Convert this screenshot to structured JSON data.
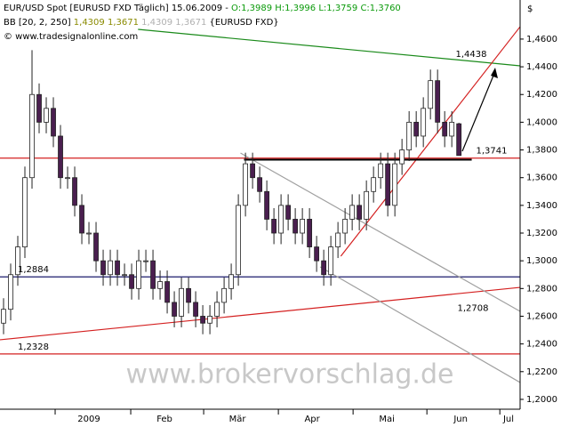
{
  "chart_data": {
    "type": "candlestick",
    "header": {
      "title": "EUR/USD Spot [EURUSD FXD  Täglich] 15.06.2009 - ",
      "ohlc": "O:1,3989 H:1,3996 L:1,3759 C:1,3760",
      "indicator": "BB [20, 2, 250]",
      "indicator_values": "1,4309 1,3671",
      "indicator_values_faint": "1,4309 1,3671",
      "indicator_symbol": "{EURUSD FXD}",
      "copyright": "© www.tradesignalonline.com",
      "watermark": "www.brokervorschlag.de",
      "currency": "$"
    },
    "open": [
      1.255,
      1.265,
      1.29,
      1.31,
      1.36,
      1.42,
      1.4,
      1.41,
      1.39,
      1.36,
      1.36,
      1.34,
      1.32,
      1.32,
      1.3,
      1.29,
      1.3,
      1.29,
      1.29,
      1.28,
      1.3,
      1.3,
      1.28,
      1.285,
      1.27,
      1.26,
      1.28,
      1.27,
      1.26,
      1.255,
      1.26,
      1.27,
      1.28,
      1.29,
      1.34,
      1.37,
      1.36,
      1.35,
      1.33,
      1.32,
      1.34,
      1.33,
      1.32,
      1.33,
      1.31,
      1.3,
      1.29,
      1.31,
      1.32,
      1.33,
      1.34,
      1.33,
      1.35,
      1.36,
      1.37,
      1.34,
      1.37,
      1.38,
      1.4,
      1.39,
      1.41,
      1.43,
      1.4,
      1.39,
      1.3989
    ],
    "high": [
      1.273,
      1.298,
      1.318,
      1.368,
      1.452,
      1.428,
      1.418,
      1.418,
      1.398,
      1.368,
      1.368,
      1.348,
      1.328,
      1.328,
      1.308,
      1.308,
      1.308,
      1.298,
      1.298,
      1.308,
      1.308,
      1.308,
      1.293,
      1.293,
      1.278,
      1.288,
      1.288,
      1.278,
      1.268,
      1.268,
      1.278,
      1.288,
      1.298,
      1.348,
      1.378,
      1.378,
      1.368,
      1.358,
      1.338,
      1.348,
      1.348,
      1.338,
      1.338,
      1.338,
      1.318,
      1.308,
      1.318,
      1.328,
      1.338,
      1.348,
      1.348,
      1.358,
      1.368,
      1.378,
      1.378,
      1.378,
      1.388,
      1.408,
      1.408,
      1.418,
      1.438,
      1.438,
      1.408,
      1.408,
      1.3996
    ],
    "low": [
      1.247,
      1.257,
      1.282,
      1.302,
      1.352,
      1.392,
      1.392,
      1.382,
      1.352,
      1.352,
      1.332,
      1.312,
      1.312,
      1.292,
      1.282,
      1.282,
      1.282,
      1.282,
      1.272,
      1.272,
      1.292,
      1.272,
      1.272,
      1.262,
      1.252,
      1.252,
      1.262,
      1.252,
      1.247,
      1.247,
      1.252,
      1.262,
      1.272,
      1.282,
      1.332,
      1.352,
      1.342,
      1.322,
      1.312,
      1.312,
      1.322,
      1.312,
      1.312,
      1.302,
      1.292,
      1.282,
      1.282,
      1.302,
      1.312,
      1.322,
      1.322,
      1.322,
      1.342,
      1.352,
      1.332,
      1.332,
      1.362,
      1.372,
      1.382,
      1.382,
      1.402,
      1.392,
      1.382,
      1.382,
      1.3759
    ],
    "close": [
      1.265,
      1.29,
      1.31,
      1.36,
      1.42,
      1.4,
      1.41,
      1.39,
      1.36,
      1.36,
      1.34,
      1.32,
      1.32,
      1.3,
      1.29,
      1.3,
      1.29,
      1.29,
      1.28,
      1.3,
      1.3,
      1.28,
      1.285,
      1.27,
      1.26,
      1.28,
      1.27,
      1.26,
      1.255,
      1.26,
      1.27,
      1.28,
      1.29,
      1.34,
      1.37,
      1.36,
      1.35,
      1.33,
      1.32,
      1.34,
      1.33,
      1.32,
      1.33,
      1.31,
      1.3,
      1.29,
      1.31,
      1.32,
      1.33,
      1.34,
      1.33,
      1.35,
      1.36,
      1.37,
      1.34,
      1.37,
      1.38,
      1.4,
      1.39,
      1.41,
      1.43,
      1.4,
      1.39,
      1.4,
      1.376
    ],
    "up_color": "#ffffff",
    "down_color": "#4a1f4f",
    "xlim": [
      -0.5,
      72.6
    ],
    "ylim": [
      1.1929,
      1.4882
    ],
    "xticks": [
      {
        "value": 7.25,
        "label": "2009"
      },
      {
        "value": 17.875,
        "label": "Feb"
      },
      {
        "value": 28.125,
        "label": "Mär"
      },
      {
        "value": 38.625,
        "label": "Apr"
      },
      {
        "value": 49.125,
        "label": "Mai"
      },
      {
        "value": 59.5,
        "label": "Jun"
      },
      {
        "value": 69.75,
        "label": "Jul"
      }
    ],
    "yticks": [
      {
        "value": 1.2,
        "label": "1,2000"
      },
      {
        "value": 1.22,
        "label": "1,2200"
      },
      {
        "value": 1.24,
        "label": "1,2400"
      },
      {
        "value": 1.26,
        "label": "1,2600"
      },
      {
        "value": 1.28,
        "label": "1,2800"
      },
      {
        "value": 1.3,
        "label": "1,3000"
      },
      {
        "value": 1.32,
        "label": "1,3200"
      },
      {
        "value": 1.34,
        "label": "1,3400"
      },
      {
        "value": 1.36,
        "label": "1,3600"
      },
      {
        "value": 1.38,
        "label": "1,3800"
      },
      {
        "value": 1.4,
        "label": "1,4000"
      },
      {
        "value": 1.42,
        "label": "1,4200"
      },
      {
        "value": 1.44,
        "label": "1,4400"
      },
      {
        "value": 1.46,
        "label": "1,4600"
      }
    ],
    "lines": [
      {
        "x": [
          18.9,
          72.6
        ],
        "y": [
          1.467,
          1.4407
        ],
        "color": "#1a8a1a",
        "level": {
          "value": 1.4438,
          "label": "1,4438"
        }
      },
      {
        "x": [
          -0.5,
          72.6
        ],
        "y": [
          1.3741,
          1.3741
        ],
        "color": "#d42020",
        "level": {
          "value": 1.3741,
          "label": "1,3741"
        }
      },
      {
        "x": [
          -0.5,
          72.6
        ],
        "y": [
          1.2884,
          1.2884
        ],
        "color": "#1c1c6e",
        "level": {
          "value": 1.2884,
          "label": "1,2884"
        }
      },
      {
        "x": [
          -0.5,
          72.6
        ],
        "y": [
          1.243,
          1.2808
        ],
        "color": "#d42020",
        "level": {
          "value": 1.2708,
          "label": "1,2708"
        }
      },
      {
        "x": [
          -0.5,
          72.6
        ],
        "y": [
          1.2328,
          1.2328
        ],
        "color": "#d42020",
        "level": {
          "value": 1.2328,
          "label": "1,2328"
        }
      },
      {
        "x": [
          47.4,
          72.6
        ],
        "y": [
          1.3033,
          1.4689
        ],
        "color": "#d42020"
      },
      {
        "x": [
          33.3,
          72.6
        ],
        "y": [
          1.3778,
          1.2635
        ],
        "color": "#a0a0a0"
      },
      {
        "x": [
          44.5,
          72.6
        ],
        "y": [
          1.2956,
          1.2122
        ],
        "color": "#a0a0a0"
      },
      {
        "x": [
          33.8,
          65.8
        ],
        "y": [
          1.373,
          1.373
        ],
        "color": "#000000"
      }
    ]
  }
}
